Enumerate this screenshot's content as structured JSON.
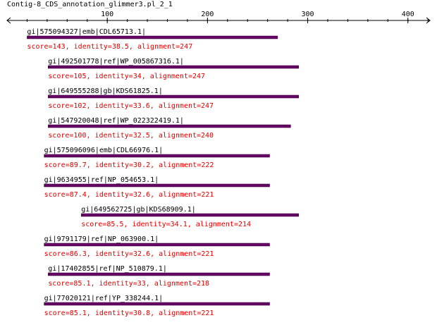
{
  "title": "Contig-8_CDS_annotation_glimmer3.pl_2_1",
  "axis": {
    "min": 0,
    "max": 422,
    "tick_labels": [
      "100",
      "200",
      "300",
      "400"
    ],
    "major_ticks": [
      100,
      200,
      300,
      400
    ],
    "minor_tick_step": 20
  },
  "colors": {
    "axis": "#000000",
    "bar": "#660066",
    "bar_edge": "#330033",
    "stats_text": "#dd0000",
    "name_text": "#000000"
  },
  "hits": [
    {
      "name": "gi|575094327|emb|CDL65713.1|",
      "stats": "score=143, identity=38.5, alignment=247",
      "start": 20,
      "end": 270
    },
    {
      "name": "gi|492501778|ref|WP_005867316.1|",
      "stats": "score=105, identity=34, alignment=247",
      "start": 41,
      "end": 291
    },
    {
      "name": "gi|649555288|gb|KDS61825.1|",
      "stats": "score=102, identity=33.6, alignment=247",
      "start": 41,
      "end": 291
    },
    {
      "name": "gi|547920048|ref|WP_022322419.1|",
      "stats": "score=100, identity=32.5, alignment=240",
      "start": 41,
      "end": 283
    },
    {
      "name": "gi|575096096|emb|CDL66976.1|",
      "stats": "score=89.7, identity=30.2, alignment=222",
      "start": 37,
      "end": 262
    },
    {
      "name": "gi|9634955|ref|NP_054653.1|",
      "stats": "score=87.4, identity=32.6, alignment=221",
      "start": 37,
      "end": 262
    },
    {
      "name": "gi|649562725|gb|KDS68909.1|",
      "stats": "score=85.5, identity=34.1, alignment=214",
      "start": 74,
      "end": 291
    },
    {
      "name": "gi|9791179|ref|NP_063900.1|",
      "stats": "score=86.3, identity=32.6, alignment=221",
      "start": 37,
      "end": 262
    },
    {
      "name": "gi|17402855|ref|NP_510879.1|",
      "stats": "score=85.1, identity=33, alignment=218",
      "start": 41,
      "end": 262
    },
    {
      "name": "gi|77020121|ref|YP_338244.1|",
      "stats": "score=85.1, identity=30.8, alignment=221",
      "start": 37,
      "end": 262
    }
  ]
}
